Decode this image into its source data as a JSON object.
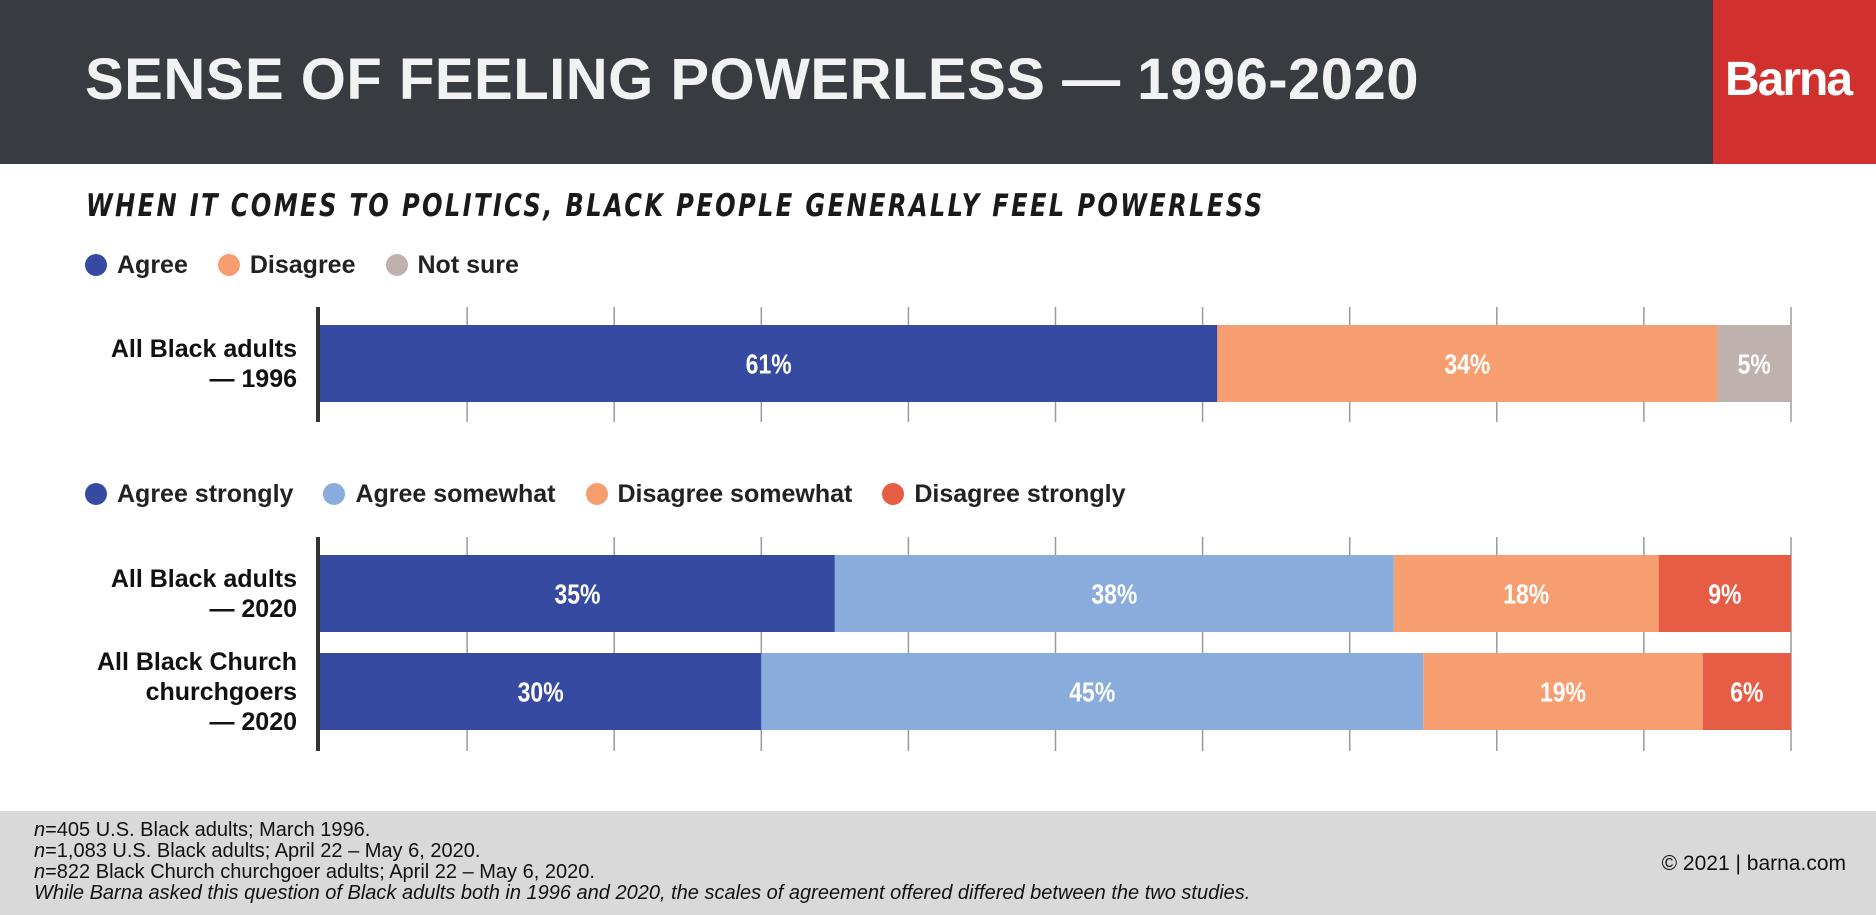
{
  "header": {
    "title": "SENSE OF FEELING POWERLESS — 1996-2020",
    "logo": "Barna"
  },
  "colors": {
    "header_bg": "#383b3f",
    "logo_bg": "#d0312e",
    "agree": "#354aa0",
    "disagree": "#f69e70",
    "not_sure": "#bfb1ae",
    "agree_strongly": "#354aa0",
    "agree_somewhat": "#89acdc",
    "disagree_somewhat": "#f69e70",
    "disagree_strongly": "#e65c45"
  },
  "chart_data": [
    {
      "type": "bar",
      "orientation": "horizontal",
      "stacked": true,
      "title": "WHEN IT COMES TO POLITICS, BLACK PEOPLE GENERALLY FEEL POWERLESS",
      "categories": [
        [
          "All Black adults",
          "— 1996"
        ]
      ],
      "series": [
        {
          "name": "Agree",
          "values": [
            61
          ],
          "labels": [
            "61%"
          ],
          "color": "#354aa0"
        },
        {
          "name": "Disagree",
          "values": [
            34
          ],
          "labels": [
            "34%"
          ],
          "color": "#f69e70"
        },
        {
          "name": "Not sure",
          "values": [
            5
          ],
          "labels": [
            "5%"
          ],
          "color": "#bfb1ae"
        }
      ],
      "xlim": [
        0,
        100
      ],
      "grid": true
    },
    {
      "type": "bar",
      "orientation": "horizontal",
      "stacked": true,
      "categories": [
        [
          "All Black adults",
          "— 2020"
        ],
        [
          "All Black Church",
          "churchgoers",
          "— 2020"
        ]
      ],
      "series": [
        {
          "name": "Agree strongly",
          "values": [
            35,
            30
          ],
          "labels": [
            "35%",
            "30%"
          ],
          "color": "#354aa0"
        },
        {
          "name": "Agree somewhat",
          "values": [
            38,
            45
          ],
          "labels": [
            "38%",
            "45%"
          ],
          "color": "#89acdc"
        },
        {
          "name": "Disagree somewhat",
          "values": [
            18,
            19
          ],
          "labels": [
            "18%",
            "19%"
          ],
          "color": "#f69e70"
        },
        {
          "name": "Disagree strongly",
          "values": [
            9,
            6
          ],
          "labels": [
            "9%",
            "6%"
          ],
          "color": "#e65c45"
        }
      ],
      "xlim": [
        0,
        100
      ],
      "grid": true
    }
  ],
  "footer": {
    "notes": [
      {
        "em": "n",
        "text": "=405 U.S. Black adults; March 1996."
      },
      {
        "em": "n",
        "text": "=1,083 U.S. Black adults; April 22 – May 6, 2020."
      },
      {
        "em": "n",
        "text": "=822 Black Church churchgoer adults; April 22 – May 6, 2020."
      },
      {
        "em": "",
        "text": "While Barna asked this question of Black adults both in 1996 and 2020, the scales of agreement offered differed between the two studies."
      }
    ],
    "copyright": "© 2021 | barna.com"
  }
}
